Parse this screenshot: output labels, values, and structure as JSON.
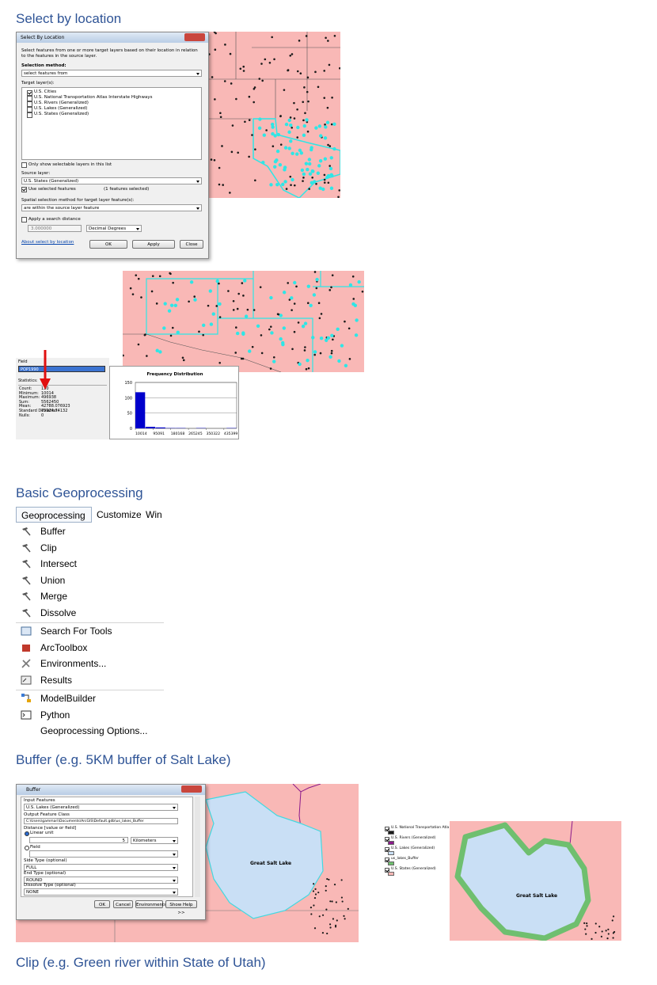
{
  "headings": [
    "Select by location",
    "Basic Geoprocessing",
    "Buffer (e.g. 5KM buffer of Salt Lake)",
    "Clip (e.g. Green river within State of Utah)"
  ],
  "select_dialog": {
    "title": "Select By Location",
    "description": "Select features from one or more target layers based on their location in relation to the features in the source layer.",
    "method_label": "Selection method:",
    "method": "select features from",
    "target_label": "Target layer(s):",
    "targets": [
      {
        "name": "U.S. Cities",
        "checked": true
      },
      {
        "name": "U.S. National Transportation Atlas Interstate Highways",
        "checked": false
      },
      {
        "name": "U.S. Rivers (Generalized)",
        "checked": false
      },
      {
        "name": "U.S. Lakes (Generalized)",
        "checked": false
      },
      {
        "name": "U.S. States (Generalized)",
        "checked": false
      }
    ],
    "only_selectable": "Only show selectable layers in this list",
    "source_label": "Source layer:",
    "source": "U.S. States (Generalized)",
    "use_selected": "Use selected features",
    "selected_count": "(1 features selected)",
    "spatial_label": "Spatial selection method for target layer feature(s):",
    "spatial_method": "are within the source layer feature",
    "apply_distance": "Apply a search distance",
    "distance": "3.000000",
    "units": "Decimal Degrees",
    "link": "About select by location",
    "buttons": [
      "OK",
      "Apply",
      "Close"
    ]
  },
  "statistics": {
    "field_label": "Field",
    "field": "POP1990",
    "title": "Statistics:",
    "rows": [
      {
        "label": "Count:",
        "value": 130
      },
      {
        "label": "Minimum:",
        "value": 10014
      },
      {
        "label": "Maximum:",
        "value": 496938
      },
      {
        "label": "Sum:",
        "value": 5562450
      },
      {
        "label": "Mean:",
        "value": 42788.076923
      },
      {
        "label": "Standard Deviation:",
        "value": 75924.74132
      },
      {
        "label": "Nulls:",
        "value": 0
      }
    ]
  },
  "histogram": {
    "type": "bar",
    "title": "Frequency Distribution",
    "color": "#0000cc",
    "ylim": [
      0,
      150
    ],
    "yticks": [
      0,
      50,
      100,
      150
    ],
    "xlim": [
      10014,
      496938
    ],
    "xticks": [
      10014,
      95091,
      180168,
      265245,
      350322,
      435399
    ],
    "values": [
      118,
      5,
      3,
      1,
      1,
      0,
      1,
      0,
      0,
      1
    ]
  },
  "menu": {
    "tabs": [
      "Geoprocessing",
      "Customize",
      "Win"
    ],
    "groups": [
      [
        "Buffer",
        "Clip",
        "Intersect",
        "Union",
        "Merge",
        "Dissolve"
      ],
      [
        "Search For Tools",
        "ArcToolbox",
        "Environments...",
        "Results"
      ],
      [
        "ModelBuilder",
        "Python",
        "Geoprocessing Options..."
      ]
    ]
  },
  "buffer_dialog": {
    "title": "Buffer",
    "input_label": "Input Features",
    "input": "U.S. Lakes (Generalized)",
    "output_label": "Output Feature Class",
    "output": "C:\\Users\\gammari\\Documents\\ArcGIS\\Default.gdb\\us_lakes_Buffer",
    "distance_label": "Distance [value or field]",
    "linear_unit": "Linear unit",
    "distance": "5",
    "unit": "Kilometers",
    "field": "Field",
    "side_label": "Side Type (optional)",
    "side": "FULL",
    "end_label": "End Type (optional)",
    "end": "ROUND",
    "dissolve_label": "Dissolve Type (optional)",
    "dissolve": "NONE",
    "buttons": [
      "OK",
      "Cancel",
      "Environments...",
      "Show Help >>"
    ]
  },
  "buffer_legend": [
    "U.S. National Transportation Atla",
    "U.S. Rivers (Generalized)",
    "U.S. Lakes (Generalized)",
    "us_lakes_Buffer",
    "U.S. States (Generalized)"
  ],
  "map_labels": [
    "Great Salt Lake",
    "Great Salt Lake"
  ]
}
